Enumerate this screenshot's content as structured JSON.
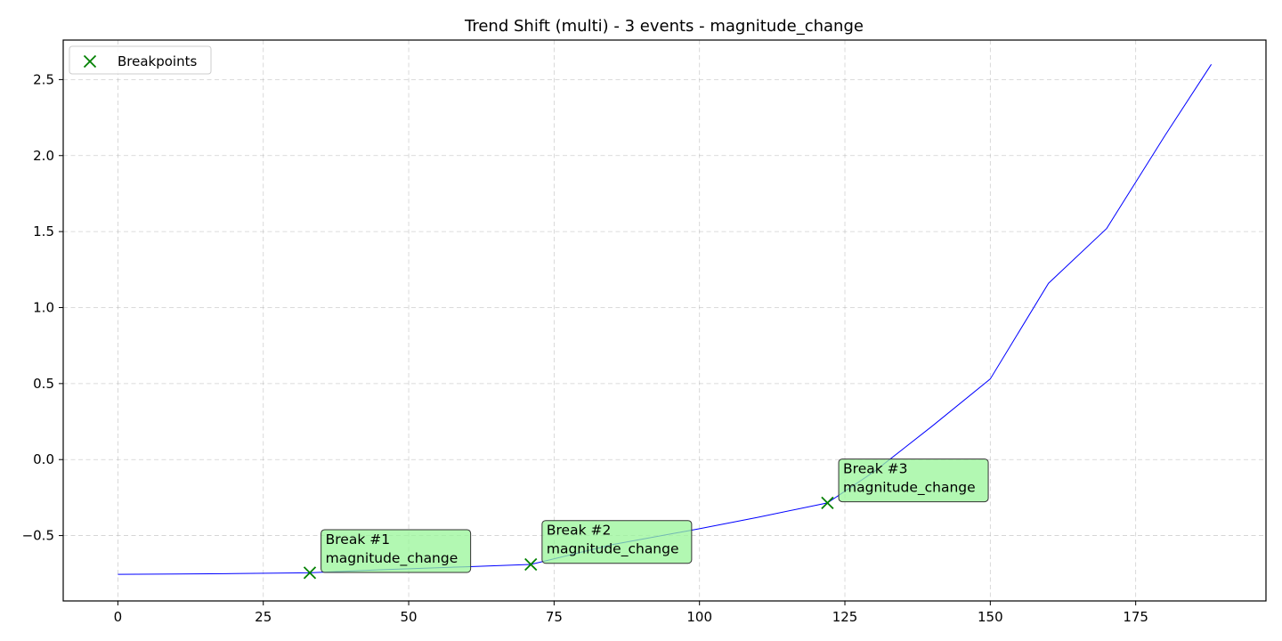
{
  "chart_data": {
    "type": "line",
    "title": "Trend Shift (multi) - 3 events - magnitude_change",
    "xlabel": "",
    "ylabel": "",
    "xlim": [
      -9.4,
      197.4
    ],
    "ylim": [
      -0.93,
      2.76
    ],
    "xticks": [
      0,
      25,
      50,
      75,
      100,
      125,
      150,
      175
    ],
    "yticks": [
      -0.5,
      0.0,
      0.5,
      1.0,
      1.5,
      2.0,
      2.5
    ],
    "ytick_labels": [
      "−0.5",
      "0.0",
      "0.5",
      "1.0",
      "1.5",
      "2.0",
      "2.5"
    ],
    "grid": true,
    "legend_position": "top-left",
    "line_color": "#0000ff",
    "marker_color": "#008000",
    "annotation_fill": "#98f598",
    "series": [
      {
        "x": [
          0,
          10,
          20,
          33,
          45,
          60,
          71,
          85,
          100,
          110,
          122,
          130,
          140,
          150,
          160,
          170,
          180,
          188
        ],
        "values": [
          -0.755,
          -0.753,
          -0.75,
          -0.745,
          -0.725,
          -0.705,
          -0.69,
          -0.56,
          -0.455,
          -0.38,
          -0.285,
          -0.08,
          0.22,
          0.53,
          1.16,
          1.52,
          2.13,
          2.6
        ]
      }
    ],
    "breakpoints": {
      "name": "Breakpoints",
      "points": [
        {
          "x": 33,
          "y": -0.745,
          "label_1": "Break #1",
          "label_2": "magnitude_change",
          "label_at": [
            35.7,
            -0.555
          ]
        },
        {
          "x": 71,
          "y": -0.69,
          "label_1": "Break #2",
          "label_2": "magnitude_change",
          "label_at": [
            73.7,
            -0.495
          ]
        },
        {
          "x": 122,
          "y": -0.285,
          "label_1": "Break #3",
          "label_2": "magnitude_change",
          "label_at": [
            124.7,
            -0.09
          ]
        }
      ]
    }
  }
}
